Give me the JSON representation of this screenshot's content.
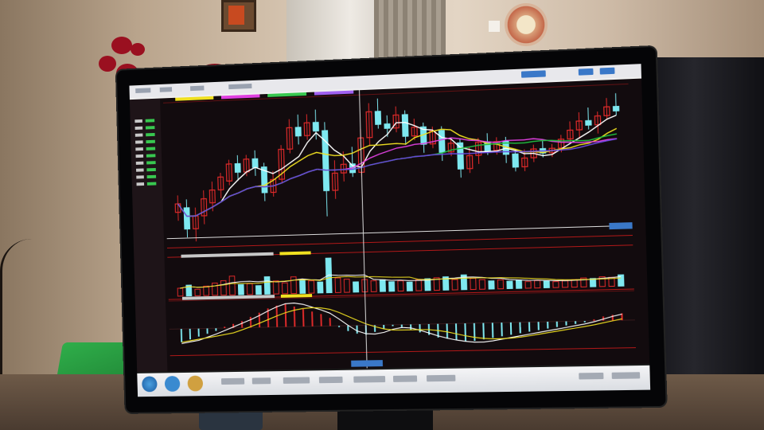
{
  "scene": {
    "description_objects": [
      "monitor",
      "wall",
      "pc-tower",
      "plant",
      "shopping-bag"
    ]
  },
  "stock_app": {
    "upper_panel": {
      "candles": [
        {
          "o": 292,
          "c": 294,
          "h": 296,
          "l": 290,
          "up": true
        },
        {
          "o": 293,
          "c": 288,
          "h": 295,
          "l": 286,
          "up": false
        },
        {
          "o": 288,
          "c": 291,
          "h": 293,
          "l": 285,
          "up": true
        },
        {
          "o": 291,
          "c": 295,
          "h": 297,
          "l": 289,
          "up": true
        },
        {
          "o": 294,
          "c": 297,
          "h": 299,
          "l": 292,
          "up": true
        },
        {
          "o": 297,
          "c": 300,
          "h": 301,
          "l": 295,
          "up": true
        },
        {
          "o": 299,
          "c": 303,
          "h": 304,
          "l": 298,
          "up": true
        },
        {
          "o": 303,
          "c": 301,
          "h": 305,
          "l": 299,
          "up": false
        },
        {
          "o": 301,
          "c": 304,
          "h": 305,
          "l": 300,
          "up": true
        },
        {
          "o": 304,
          "c": 302,
          "h": 306,
          "l": 300,
          "up": false
        },
        {
          "o": 302,
          "c": 296,
          "h": 303,
          "l": 294,
          "up": false
        },
        {
          "o": 296,
          "c": 299,
          "h": 301,
          "l": 295,
          "up": true
        },
        {
          "o": 299,
          "c": 306,
          "h": 307,
          "l": 298,
          "up": true
        },
        {
          "o": 306,
          "c": 311,
          "h": 313,
          "l": 305,
          "up": true
        },
        {
          "o": 311,
          "c": 309,
          "h": 314,
          "l": 307,
          "up": false
        },
        {
          "o": 309,
          "c": 312,
          "h": 314,
          "l": 308,
          "up": true
        },
        {
          "o": 312,
          "c": 310,
          "h": 315,
          "l": 308,
          "up": false
        },
        {
          "o": 310,
          "c": 296,
          "h": 312,
          "l": 290,
          "up": false
        },
        {
          "o": 296,
          "c": 300,
          "h": 303,
          "l": 294,
          "up": true
        },
        {
          "o": 300,
          "c": 302,
          "h": 305,
          "l": 298,
          "up": true
        },
        {
          "o": 302,
          "c": 300,
          "h": 306,
          "l": 299,
          "up": false
        },
        {
          "o": 300,
          "c": 308,
          "h": 310,
          "l": 299,
          "up": true
        },
        {
          "o": 308,
          "c": 314,
          "h": 316,
          "l": 306,
          "up": true
        },
        {
          "o": 314,
          "c": 311,
          "h": 317,
          "l": 310,
          "up": false
        },
        {
          "o": 311,
          "c": 310,
          "h": 313,
          "l": 308,
          "up": false
        },
        {
          "o": 310,
          "c": 313,
          "h": 315,
          "l": 309,
          "up": true
        },
        {
          "o": 313,
          "c": 308,
          "h": 314,
          "l": 306,
          "up": false
        },
        {
          "o": 308,
          "c": 310,
          "h": 312,
          "l": 307,
          "up": true
        },
        {
          "o": 310,
          "c": 306,
          "h": 311,
          "l": 304,
          "up": false
        },
        {
          "o": 306,
          "c": 309,
          "h": 310,
          "l": 305,
          "up": true
        },
        {
          "o": 309,
          "c": 304,
          "h": 310,
          "l": 302,
          "up": false
        },
        {
          "o": 304,
          "c": 306,
          "h": 307,
          "l": 303,
          "up": true
        },
        {
          "o": 306,
          "c": 300,
          "h": 307,
          "l": 298,
          "up": false
        },
        {
          "o": 300,
          "c": 303,
          "h": 305,
          "l": 299,
          "up": true
        },
        {
          "o": 303,
          "c": 306,
          "h": 307,
          "l": 301,
          "up": true
        },
        {
          "o": 306,
          "c": 304,
          "h": 308,
          "l": 303,
          "up": false
        },
        {
          "o": 304,
          "c": 306,
          "h": 307,
          "l": 303,
          "up": true
        },
        {
          "o": 306,
          "c": 303,
          "h": 307,
          "l": 301,
          "up": false
        },
        {
          "o": 303,
          "c": 300,
          "h": 304,
          "l": 299,
          "up": false
        },
        {
          "o": 300,
          "c": 302,
          "h": 304,
          "l": 299,
          "up": true
        },
        {
          "o": 302,
          "c": 304,
          "h": 305,
          "l": 301,
          "up": true
        },
        {
          "o": 304,
          "c": 303,
          "h": 306,
          "l": 302,
          "up": false
        },
        {
          "o": 303,
          "c": 304,
          "h": 305,
          "l": 302,
          "up": true
        },
        {
          "o": 304,
          "c": 306,
          "h": 307,
          "l": 303,
          "up": true
        },
        {
          "o": 306,
          "c": 308,
          "h": 310,
          "l": 305,
          "up": true
        },
        {
          "o": 308,
          "c": 310,
          "h": 312,
          "l": 306,
          "up": true
        },
        {
          "o": 310,
          "c": 309,
          "h": 313,
          "l": 308,
          "up": false
        },
        {
          "o": 309,
          "c": 311,
          "h": 312,
          "l": 307,
          "up": true
        },
        {
          "o": 311,
          "c": 313,
          "h": 315,
          "l": 310,
          "up": true
        },
        {
          "o": 313,
          "c": 312,
          "h": 316,
          "l": 311,
          "up": false
        }
      ],
      "price_range": [
        284,
        318
      ]
    },
    "volume_panel": {
      "volumes": [
        22,
        30,
        18,
        26,
        34,
        40,
        52,
        28,
        30,
        24,
        48,
        36,
        30,
        46,
        38,
        34,
        30,
        95,
        40,
        36,
        28,
        34,
        30,
        32,
        26,
        28,
        24,
        30,
        32,
        34,
        36,
        28,
        40,
        30,
        26,
        22,
        24,
        20,
        22,
        18,
        20,
        18,
        16,
        18,
        20,
        24,
        22,
        26,
        24,
        30
      ],
      "max": 100
    },
    "macd_panel": {
      "hist": [
        -20,
        -16,
        -12,
        -8,
        -4,
        2,
        6,
        10,
        16,
        22,
        28,
        32,
        34,
        30,
        26,
        22,
        18,
        12,
        -2,
        -8,
        -12,
        -14,
        -10,
        -6,
        -2,
        -4,
        -8,
        -12,
        -16,
        -20,
        -22,
        -24,
        -26,
        -26,
        -24,
        -22,
        -20,
        -18,
        -16,
        -14,
        -12,
        -10,
        -8,
        -6,
        -4,
        -2,
        2,
        6,
        8,
        10
      ],
      "range": [
        -40,
        40
      ]
    }
  },
  "colors": {
    "up": "#e02a2a",
    "down": "#7ee8f0",
    "ma5": "#ffffff",
    "ma10": "#f0e020",
    "ma20": "#e040e0",
    "ma60": "#20c040",
    "ma120": "#6a4ae0",
    "grid": "#b01818",
    "crosshair": "#dcdcdc"
  }
}
